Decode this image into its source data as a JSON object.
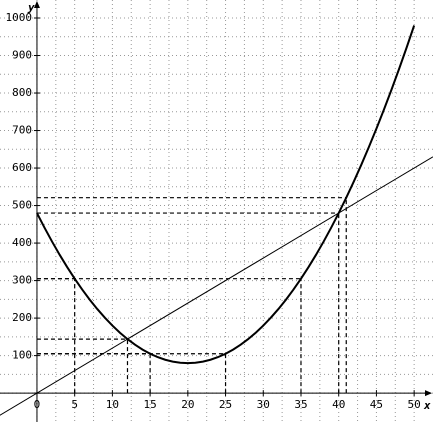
{
  "chart_data": {
    "type": "function",
    "x_label": "x",
    "y_label": "y",
    "xlim": [
      -4.9,
      52.5
    ],
    "ylim": [
      -77,
      1048
    ],
    "xticks": [
      0,
      5,
      10,
      15,
      20,
      25,
      30,
      35,
      40,
      45,
      50
    ],
    "yticks": [
      0,
      100,
      200,
      300,
      400,
      500,
      600,
      700,
      800,
      900,
      1000
    ],
    "grid": true,
    "series": [
      {
        "color": "#000000",
        "x": [
          0,
          1,
          2,
          3,
          4,
          5,
          6,
          7,
          8,
          9,
          10,
          11,
          12,
          13,
          14,
          15,
          16,
          17,
          18,
          19,
          20,
          21,
          22,
          23,
          24,
          25,
          26,
          27,
          28,
          29,
          30,
          31,
          32,
          33,
          34,
          35,
          36,
          37,
          38,
          39,
          40,
          41,
          42,
          43,
          44,
          45,
          46,
          47,
          48,
          49,
          50
        ],
        "values": [
          480,
          441,
          404,
          369,
          336,
          305,
          276,
          249,
          224,
          201,
          180,
          161,
          144,
          129,
          116,
          105,
          96,
          89,
          84,
          81,
          80,
          81,
          84,
          89,
          96,
          105,
          116,
          129,
          144,
          161,
          180,
          201,
          224,
          249,
          276,
          305,
          336,
          369,
          404,
          441,
          480,
          521,
          564,
          609,
          656,
          705,
          756,
          809,
          864,
          921,
          980
        ]
      },
      {
        "color": "#000000",
        "x": [
          -5,
          52.5
        ],
        "values": [
          -60,
          630
        ]
      }
    ],
    "guides": {
      "x": [
        5,
        35,
        12,
        15,
        25,
        40,
        41
      ],
      "values": [
        305,
        305,
        144,
        105,
        105,
        480,
        521
      ]
    }
  }
}
